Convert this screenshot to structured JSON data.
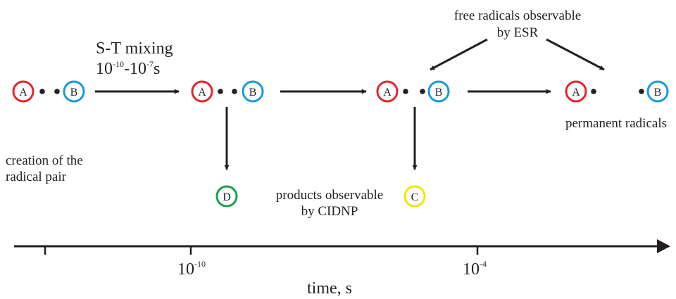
{
  "radicals": {
    "A": {
      "label": "A",
      "color": "#e2262b"
    },
    "B": {
      "label": "B",
      "color": "#1b9ad6"
    },
    "C": {
      "label": "C",
      "color": "#f2e500"
    },
    "D": {
      "label": "D",
      "color": "#1ba04a"
    }
  },
  "stages": {
    "creation": {
      "line1": "creation of the",
      "line2": "radical pair"
    },
    "mixing": {
      "title": "S-T mixing",
      "range_base1": "10",
      "range_exp1": "-10",
      "range_sep": "-10",
      "range_exp2": "-7",
      "range_unit": "s"
    },
    "cidnp": {
      "line1": "products observable",
      "line2": "by CIDNP"
    },
    "esr": {
      "line1": "free radicals observable",
      "line2": "by ESR"
    },
    "permanent": {
      "label": "permanent radicals"
    }
  },
  "time_axis": {
    "label": "time, s",
    "ticks": [
      {
        "base": "10",
        "exp": "-10"
      },
      {
        "base": "10",
        "exp": "-4"
      }
    ]
  }
}
